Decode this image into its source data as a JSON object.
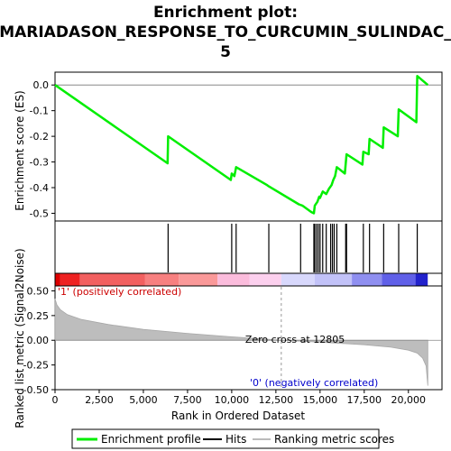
{
  "chart_data": {
    "type": "line",
    "title_lines": [
      "Enrichment plot:",
      "MARIADASON_RESPONSE_TO_CURCUMIN_SULINDAC_",
      "5"
    ],
    "x_axis": {
      "label": "Rank in Ordered Dataset",
      "range": [
        0,
        21900
      ],
      "ticks": [
        0,
        2500,
        5000,
        7500,
        10000,
        12500,
        15000,
        17500,
        20000
      ],
      "tick_labels": [
        "0",
        "2,500",
        "5,000",
        "7,500",
        "10,000",
        "12,500",
        "15,000",
        "17,500",
        "20,000"
      ]
    },
    "es_panel": {
      "ylabel": "Enrichment score (ES)",
      "ylim": [
        -0.53,
        0.05
      ],
      "ticks": [
        0.0,
        -0.1,
        -0.2,
        -0.3,
        -0.4,
        -0.5
      ],
      "tick_labels": [
        "0.0",
        "-0.1",
        "-0.2",
        "-0.3",
        "-0.4",
        "-0.5"
      ],
      "color": "#00ee00",
      "series_name": "Enrichment profile",
      "points": [
        [
          0,
          0.0
        ],
        [
          6370,
          -0.305
        ],
        [
          6400,
          -0.2
        ],
        [
          9950,
          -0.37
        ],
        [
          10000,
          -0.345
        ],
        [
          10150,
          -0.355
        ],
        [
          10250,
          -0.32
        ],
        [
          12000,
          -0.39
        ],
        [
          12100,
          -0.395
        ],
        [
          13800,
          -0.465
        ],
        [
          14000,
          -0.47
        ],
        [
          14500,
          -0.495
        ],
        [
          14650,
          -0.5
        ],
        [
          14700,
          -0.47
        ],
        [
          14850,
          -0.455
        ],
        [
          14950,
          -0.435
        ],
        [
          15000,
          -0.44
        ],
        [
          15150,
          -0.415
        ],
        [
          15350,
          -0.425
        ],
        [
          15500,
          -0.405
        ],
        [
          15650,
          -0.39
        ],
        [
          15750,
          -0.37
        ],
        [
          15850,
          -0.355
        ],
        [
          15950,
          -0.32
        ],
        [
          16400,
          -0.345
        ],
        [
          16500,
          -0.27
        ],
        [
          17400,
          -0.31
        ],
        [
          17450,
          -0.26
        ],
        [
          17750,
          -0.27
        ],
        [
          17800,
          -0.21
        ],
        [
          18550,
          -0.245
        ],
        [
          18600,
          -0.165
        ],
        [
          19400,
          -0.2
        ],
        [
          19450,
          -0.095
        ],
        [
          20450,
          -0.145
        ],
        [
          20500,
          0.035
        ],
        [
          21100,
          0.0
        ]
      ]
    },
    "hits": {
      "name": "Hits",
      "positions": [
        6400,
        10000,
        10250,
        12100,
        13900,
        14650,
        14700,
        14800,
        14900,
        15000,
        15150,
        15350,
        15600,
        15700,
        15800,
        15950,
        16450,
        16500,
        17450,
        17800,
        18600,
        19450,
        20500
      ]
    },
    "ranked_metric": {
      "name": "Ranking metric scores",
      "ylabel": "Ranked list metric (Signal2Noise)",
      "ylim": [
        -0.5,
        0.55
      ],
      "ticks": [
        0.5,
        0.25,
        0.0,
        -0.25,
        -0.5
      ],
      "tick_labels": [
        "0.50",
        "0.25",
        "0.00",
        "-0.25",
        "-0.50"
      ],
      "profile": [
        [
          0,
          0.42
        ],
        [
          100,
          0.36
        ],
        [
          300,
          0.31
        ],
        [
          700,
          0.26
        ],
        [
          1500,
          0.21
        ],
        [
          3000,
          0.16
        ],
        [
          5000,
          0.11
        ],
        [
          7500,
          0.07
        ],
        [
          10000,
          0.035
        ],
        [
          12805,
          0.0
        ],
        [
          15000,
          -0.02
        ],
        [
          17500,
          -0.045
        ],
        [
          19000,
          -0.07
        ],
        [
          20000,
          -0.1
        ],
        [
          20500,
          -0.13
        ],
        [
          20800,
          -0.18
        ],
        [
          21000,
          -0.26
        ],
        [
          21100,
          -0.46
        ]
      ],
      "zero_cross_rank": 12805,
      "zero_cross_label": "Zero cross at 12805",
      "positive_label": "'1' (positively correlated)",
      "negative_label": "'0' (negatively correlated)"
    },
    "color_bar": [
      {
        "from": 0,
        "to": 300,
        "color": "#dd0000"
      },
      {
        "from": 300,
        "to": 1400,
        "color": "#ee2222"
      },
      {
        "from": 1400,
        "to": 5100,
        "color": "#f26060"
      },
      {
        "from": 5100,
        "to": 7000,
        "color": "#f78080"
      },
      {
        "from": 7000,
        "to": 9200,
        "color": "#fa9999"
      },
      {
        "from": 9200,
        "to": 11000,
        "color": "#fbbcdc"
      },
      {
        "from": 11000,
        "to": 12805,
        "color": "#fcd0ee"
      },
      {
        "from": 12805,
        "to": 14700,
        "color": "#d8d8fc"
      },
      {
        "from": 14700,
        "to": 16800,
        "color": "#c2c2f8"
      },
      {
        "from": 16800,
        "to": 18500,
        "color": "#8f8ff0"
      },
      {
        "from": 18500,
        "to": 20400,
        "color": "#6060e8"
      },
      {
        "from": 20400,
        "to": 21100,
        "color": "#2222cc"
      }
    ],
    "legend": {
      "placement": "bottom",
      "items": [
        "Enrichment profile",
        "Hits",
        "Ranking metric scores"
      ]
    },
    "grid": false
  }
}
